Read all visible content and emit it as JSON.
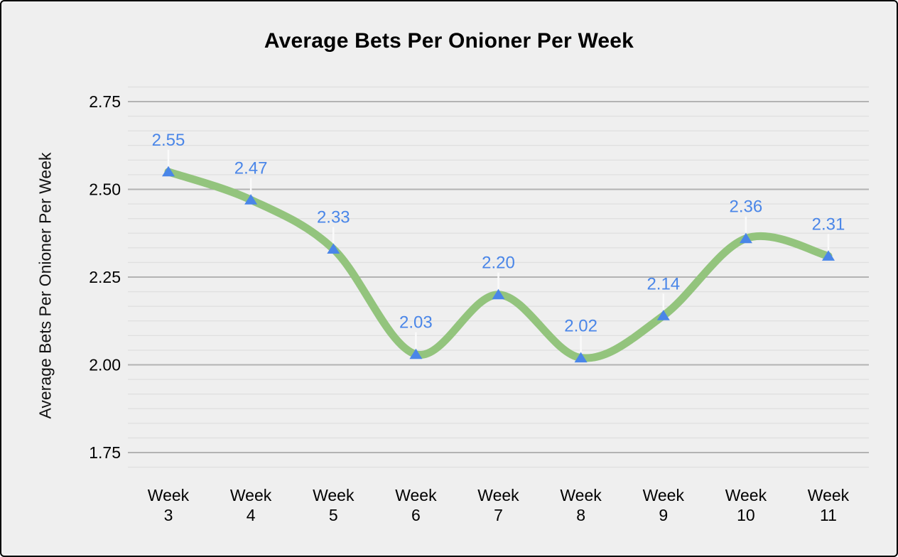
{
  "page": {
    "background": "#efefef",
    "border_color": "#000000"
  },
  "chart_data": {
    "type": "line",
    "title": "Average Bets Per Onioner Per Week",
    "xlabel": "",
    "ylabel": "Average Bets Per Onioner Per Week",
    "categories": [
      "Week 3",
      "Week 4",
      "Week 5",
      "Week 6",
      "Week 7",
      "Week 8",
      "Week 9",
      "Week 10",
      "Week 11"
    ],
    "series": [
      {
        "name": "Average Bets Per Onioner Per Week",
        "values": [
          2.55,
          2.47,
          2.33,
          2.03,
          2.2,
          2.02,
          2.14,
          2.36,
          2.31
        ],
        "point_labels": [
          "2.55",
          "2.47",
          "2.33",
          "2.03",
          "2.20",
          "2.02",
          "2.14",
          "2.36",
          "2.31"
        ]
      }
    ],
    "axis": {
      "ytick_labels": [
        "2.75",
        "2.50",
        "2.25",
        "2.00",
        "1.75"
      ],
      "yticks": [
        2.75,
        2.5,
        2.25,
        2.0,
        1.75
      ],
      "ylim": [
        1.7083,
        2.7917
      ],
      "minor_step": 0.0416667,
      "grid": "horizontal-only",
      "legend": "none",
      "smooth": true
    },
    "colors": {
      "line": "#93c47d",
      "marker": "#4a86e8",
      "data_label": "#4a86e8",
      "label_connector": "#fafafa",
      "gridline_major": "#b3b3b3",
      "gridline_minor": "#e0e0e0",
      "tick_text": "#000000"
    }
  }
}
